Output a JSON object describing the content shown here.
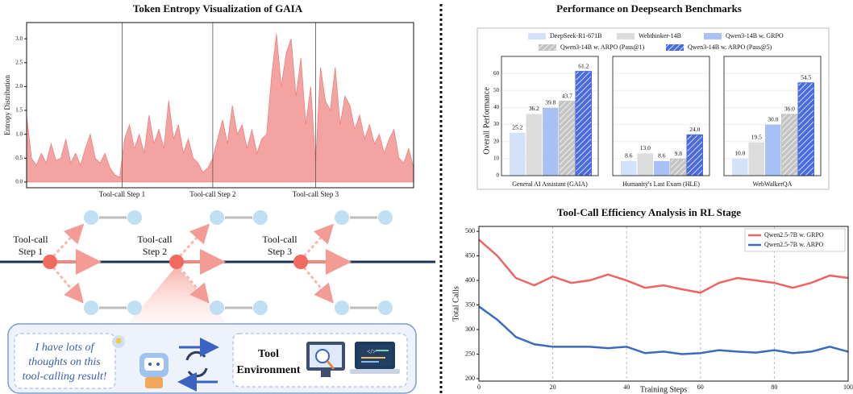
{
  "chart_data": [
    {
      "type": "area",
      "title": "Token Entropy Visualization of GAIA",
      "ylabel": "Entropy Distribution",
      "color": "#f4a3a3",
      "line_color": "#ee7f7f",
      "values": [
        1.4,
        0.5,
        0.35,
        0.6,
        0.4,
        0.8,
        0.45,
        0.5,
        0.9,
        0.4,
        0.6,
        0.35,
        0.7,
        1.0,
        0.5,
        0.4,
        0.6,
        0.3,
        0.15,
        0.1,
        0.9,
        1.2,
        0.7,
        1.0,
        0.6,
        1.4,
        0.8,
        1.1,
        0.7,
        1.7,
        0.9,
        1.2,
        0.6,
        0.9,
        0.5,
        0.4,
        0.2,
        0.3,
        0.5,
        0.9,
        1.3,
        0.8,
        1.6,
        1.0,
        1.2,
        0.7,
        1.1,
        0.6,
        0.9,
        1.0,
        2.2,
        3.1,
        2.0,
        2.7,
        3.0,
        1.8,
        2.6,
        1.2,
        2.0,
        0.4,
        2.4,
        1.7,
        1.5,
        2.4,
        1.2,
        1.8,
        1.6,
        1.1,
        1.4,
        0.9,
        1.2,
        0.8,
        1.0,
        0.6,
        0.9,
        1.1,
        0.5,
        0.4,
        0.7,
        0.3
      ],
      "ylim": [
        -0.12,
        3.34
      ],
      "yticks": [
        {
          "value": 0,
          "label": "0.0"
        },
        0.5,
        {
          "value": 1,
          "label": "1.0"
        },
        1.5,
        {
          "value": 2,
          "label": "2.0"
        },
        2.5,
        {
          "value": 3,
          "label": "3.0"
        }
      ],
      "annotations": [
        {
          "x": 19.5,
          "label": "Tool-call Step 1"
        },
        {
          "x": 38,
          "label": "Tool-call Step 2"
        },
        {
          "x": 59,
          "label": "Tool-call Step 3"
        }
      ]
    },
    {
      "type": "grouped_bar",
      "title": "Performance on Deepsearch Benchmarks",
      "ylabel": "Overall Performance",
      "categories": [
        "General AI Assistant (GAIA)",
        "Humanity's Last Exam (HLE)",
        "WebWalkerQA"
      ],
      "ylim": [
        0,
        70
      ],
      "yticks": [
        0,
        10,
        20,
        30,
        40,
        50,
        60
      ],
      "series": [
        {
          "name": "DeepSeek-R1-671B",
          "color": "#d3e2f8",
          "hatch": false,
          "values": [
            25.2,
            8.6,
            10.0
          ],
          "value_labels": [
            "25.2",
            "8.6",
            "10.0"
          ]
        },
        {
          "name": "Webthinker-14B",
          "color": "#dcdcdc",
          "hatch": false,
          "values": [
            36.2,
            13.0,
            19.5
          ],
          "value_labels": [
            "36.2",
            "13.0",
            "19.5"
          ]
        },
        {
          "name": "Qwen3-14B w. GRPO",
          "color": "#a8c0f4",
          "hatch": false,
          "values": [
            39.8,
            8.6,
            30.0
          ],
          "value_labels": [
            "39.8",
            "8.6",
            "30.0"
          ]
        },
        {
          "name": "Qwen3-14B w. ARPO (Pass@1)",
          "color": "#c4c4c4",
          "hatch": true,
          "values": [
            43.7,
            9.8,
            36.0
          ],
          "value_labels": [
            "43.7",
            "9.8",
            "36.0"
          ]
        },
        {
          "name": "Qwen3-14B w. ARPO (Pass@5)",
          "color": "#4a6ae0",
          "hatch": true,
          "values": [
            61.2,
            24.0,
            54.5
          ],
          "value_labels": [
            "61.2",
            "24.0",
            "54.5"
          ]
        }
      ]
    },
    {
      "type": "line",
      "title": "Tool-Call Efficiency Analysis in RL Stage",
      "xlabel": "Training Steps",
      "ylabel": "Total Calls",
      "x": [
        0,
        5,
        10,
        15,
        20,
        25,
        30,
        35,
        40,
        45,
        50,
        55,
        60,
        65,
        70,
        75,
        80,
        85,
        90,
        95,
        100
      ],
      "xlim": [
        0,
        100
      ],
      "xticks": [
        0,
        20,
        40,
        60,
        80,
        100
      ],
      "ylim": [
        195,
        510
      ],
      "yticks": [
        200,
        250,
        300,
        350,
        400,
        450,
        500
      ],
      "grid": true,
      "legend": "upper right",
      "series": [
        {
          "name": "Qwen2.5-7B w. GRPO",
          "color": "#ee6464",
          "values": [
            483,
            450,
            405,
            390,
            408,
            395,
            400,
            412,
            400,
            385,
            390,
            382,
            375,
            395,
            405,
            400,
            395,
            385,
            395,
            410,
            405
          ]
        },
        {
          "name": "Qwen2.5-7B w. ARPO",
          "color": "#3a6bbf",
          "values": [
            347,
            320,
            285,
            270,
            265,
            265,
            265,
            262,
            265,
            252,
            255,
            250,
            252,
            258,
            255,
            253,
            258,
            252,
            255,
            265,
            255
          ]
        }
      ]
    }
  ],
  "diagram": {
    "steps": [
      [
        "Tool-call",
        "Step 1"
      ],
      [
        "Tool-call",
        "Step 2"
      ],
      [
        "Tool-call",
        "Step 3"
      ]
    ],
    "thought": [
      "I have lots of",
      "thoughts on this",
      "tool-calling result!"
    ],
    "tool": [
      "Tool",
      "Environment"
    ]
  }
}
